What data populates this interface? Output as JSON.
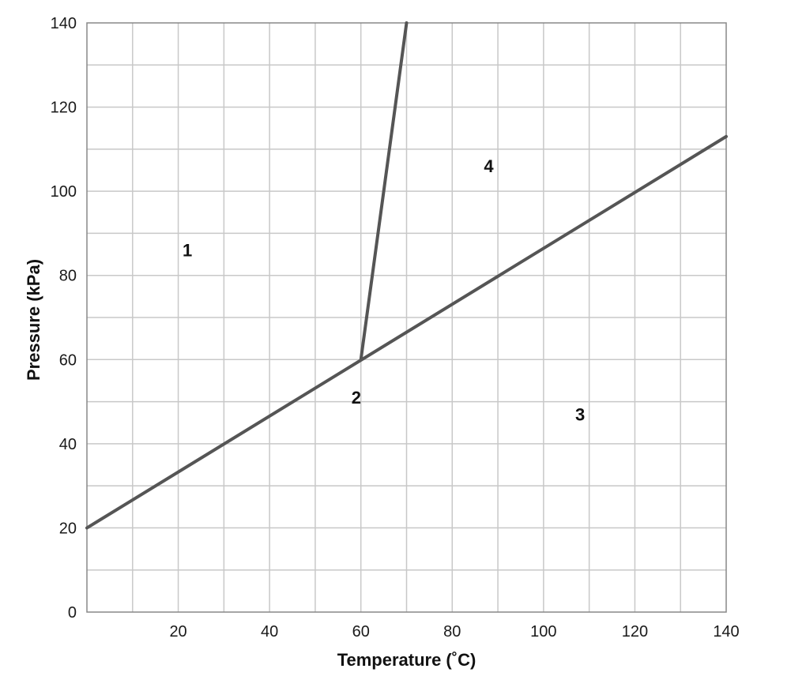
{
  "chart_data": {
    "type": "line",
    "title": "",
    "xlabel": "Temperature (˚C)",
    "ylabel": "Pressure (kPa)",
    "xlim": [
      0,
      140
    ],
    "ylim": [
      0,
      140
    ],
    "x_ticks": [
      20,
      40,
      60,
      80,
      100,
      120,
      140
    ],
    "y_ticks": [
      0,
      20,
      40,
      60,
      80,
      100,
      120,
      140
    ],
    "grid": true,
    "grid_step": {
      "x": 10,
      "y": 10
    },
    "series": [
      {
        "points": [
          [
            0,
            20
          ],
          [
            140,
            113
          ]
        ]
      },
      {
        "points": [
          [
            60,
            60
          ],
          [
            70,
            140
          ]
        ]
      }
    ],
    "annotations": [
      {
        "text": "1",
        "x": 22,
        "y": 86
      },
      {
        "text": "2",
        "x": 59,
        "y": 51
      },
      {
        "text": "3",
        "x": 108,
        "y": 47
      },
      {
        "text": "4",
        "x": 88,
        "y": 106
      }
    ]
  }
}
